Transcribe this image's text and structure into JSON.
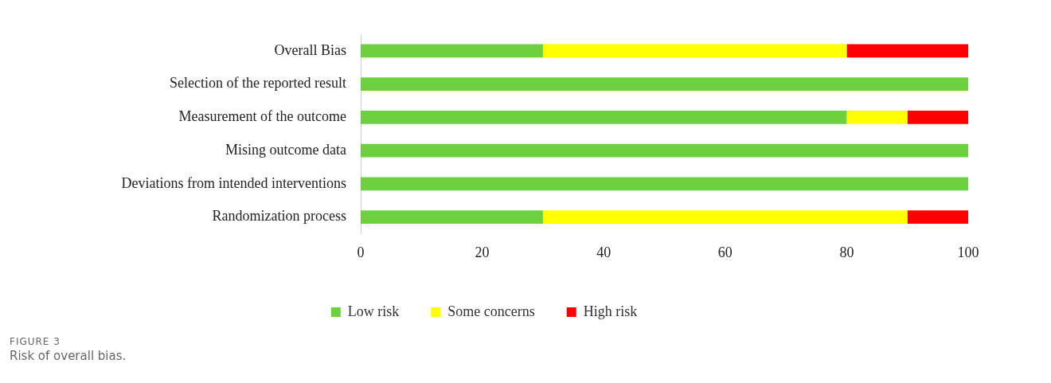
{
  "chart_data": {
    "type": "bar",
    "orientation": "horizontal",
    "stacked": true,
    "categories": [
      "Overall Bias",
      "Selection of the reported result",
      "Measurement of the outcome",
      "Mising outcome data",
      "Deviations from intended interventions",
      "Randomization process"
    ],
    "series": [
      {
        "name": "Low risk",
        "color": "#6dd13f",
        "values": [
          30,
          100,
          80,
          100,
          100,
          30
        ]
      },
      {
        "name": "Some concerns",
        "color": "#ffff00",
        "values": [
          50,
          0,
          10,
          0,
          0,
          60
        ]
      },
      {
        "name": "High risk",
        "color": "#ff0000",
        "values": [
          20,
          0,
          10,
          0,
          0,
          10
        ]
      }
    ],
    "xlim": [
      0,
      100
    ],
    "xticks": [
      0,
      20,
      40,
      60,
      80,
      100
    ],
    "grid": false,
    "legend": "bottom",
    "annotations": [
      "FIGURE 3",
      "Risk of overall bias."
    ]
  }
}
